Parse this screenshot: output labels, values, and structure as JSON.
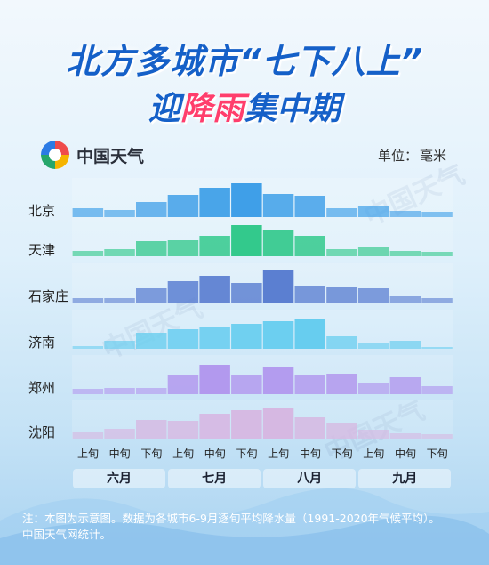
{
  "title_line1": "北方多城市“七下八上”",
  "title_line2_prefix": "迎",
  "title_line2_highlight": "降雨",
  "title_line2_suffix": "集中期",
  "brand": "中国天气",
  "unit_label": "单位：",
  "unit_value": "毫米",
  "note_line1": "注：本图为示意图。数据为各城市6-9月逐旬平均降水量（1991-2020年气候平均）。",
  "note_line2": "中国天气网统计。",
  "watermark": "中国天气",
  "colors": {
    "title": "#1560c8",
    "highlight": "#ff3e6c",
    "beijing": "#3f9fe8",
    "tianjin": "#33c98c",
    "shijiazhuang": "#5b7fd1",
    "jinan": "#67cdef",
    "zhengzhou": "#b299ee",
    "shenyang": "#d6b8e2"
  },
  "chart_data": {
    "type": "bar",
    "categories": [
      "上旬",
      "中旬",
      "下旬",
      "上旬",
      "中旬",
      "下旬",
      "上旬",
      "中旬",
      "下旬",
      "上旬",
      "中旬",
      "下旬"
    ],
    "months": [
      "六月",
      "七月",
      "八月",
      "九月"
    ],
    "series": [
      {
        "name": "北京",
        "color": "#3f9fe8",
        "values": [
          10,
          8,
          17,
          25,
          33,
          38,
          26,
          24,
          10,
          13,
          7,
          6
        ]
      },
      {
        "name": "天津",
        "color": "#33c98c",
        "values": [
          6,
          8,
          17,
          18,
          23,
          35,
          29,
          23,
          8,
          10,
          6,
          5
        ]
      },
      {
        "name": "石家庄",
        "color": "#5b7fd1",
        "values": [
          5,
          5,
          16,
          24,
          30,
          22,
          36,
          19,
          18,
          16,
          7,
          5
        ]
      },
      {
        "name": "济南",
        "color": "#67cdef",
        "values": [
          3,
          9,
          18,
          22,
          24,
          28,
          31,
          34,
          14,
          6,
          9,
          2
        ]
      },
      {
        "name": "郑州",
        "color": "#b299ee",
        "values": [
          6,
          7,
          7,
          22,
          33,
          21,
          31,
          21,
          23,
          12,
          19,
          9
        ]
      },
      {
        "name": "沈阳",
        "color": "#d6b8e2",
        "values": [
          8,
          11,
          21,
          20,
          28,
          32,
          35,
          24,
          18,
          10,
          6,
          5
        ]
      }
    ]
  }
}
